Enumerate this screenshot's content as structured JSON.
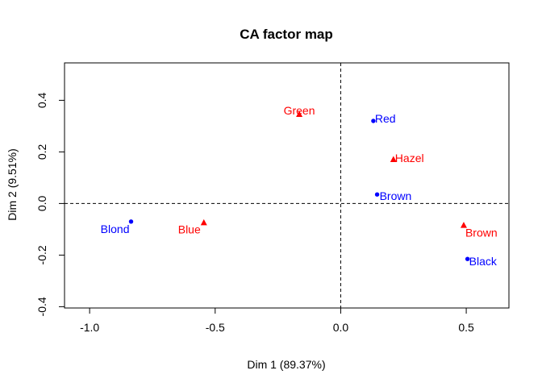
{
  "chart_data": {
    "type": "scatter",
    "title": "CA factor map",
    "xlabel": "Dim 1 (89.37%)",
    "ylabel": "Dim 2 (9.51%)",
    "xlim": [
      -1.1,
      0.67
    ],
    "ylim": [
      -0.405,
      0.545
    ],
    "xticks": [
      -1.0,
      -0.5,
      0.0,
      0.5
    ],
    "xtick_labels": [
      "-1.0",
      "-0.5",
      "0.0",
      "0.5"
    ],
    "yticks": [
      -0.4,
      -0.2,
      0.0,
      0.2,
      0.4
    ],
    "ytick_labels": [
      "-0.4",
      "-0.2",
      "0.0",
      "0.2",
      "0.4"
    ],
    "reference_lines": {
      "x": 0,
      "y": 0,
      "style": "dashed"
    },
    "grid": false,
    "series": [
      {
        "color": "#0000ff",
        "marker": "circle",
        "points": [
          {
            "label": "Red",
            "x": 0.13,
            "y": 0.32
          },
          {
            "label": "Brown",
            "x": 0.145,
            "y": 0.035
          },
          {
            "label": "Blond",
            "x": -0.835,
            "y": -0.07
          },
          {
            "label": "Black",
            "x": 0.505,
            "y": -0.215
          }
        ]
      },
      {
        "color": "#ff0000",
        "marker": "triangle",
        "points": [
          {
            "label": "Green",
            "x": -0.165,
            "y": 0.345
          },
          {
            "label": "Hazel",
            "x": 0.21,
            "y": 0.17
          },
          {
            "label": "Blue",
            "x": -0.545,
            "y": -0.075
          },
          {
            "label": "Brown",
            "x": 0.49,
            "y": -0.085
          }
        ]
      }
    ]
  }
}
